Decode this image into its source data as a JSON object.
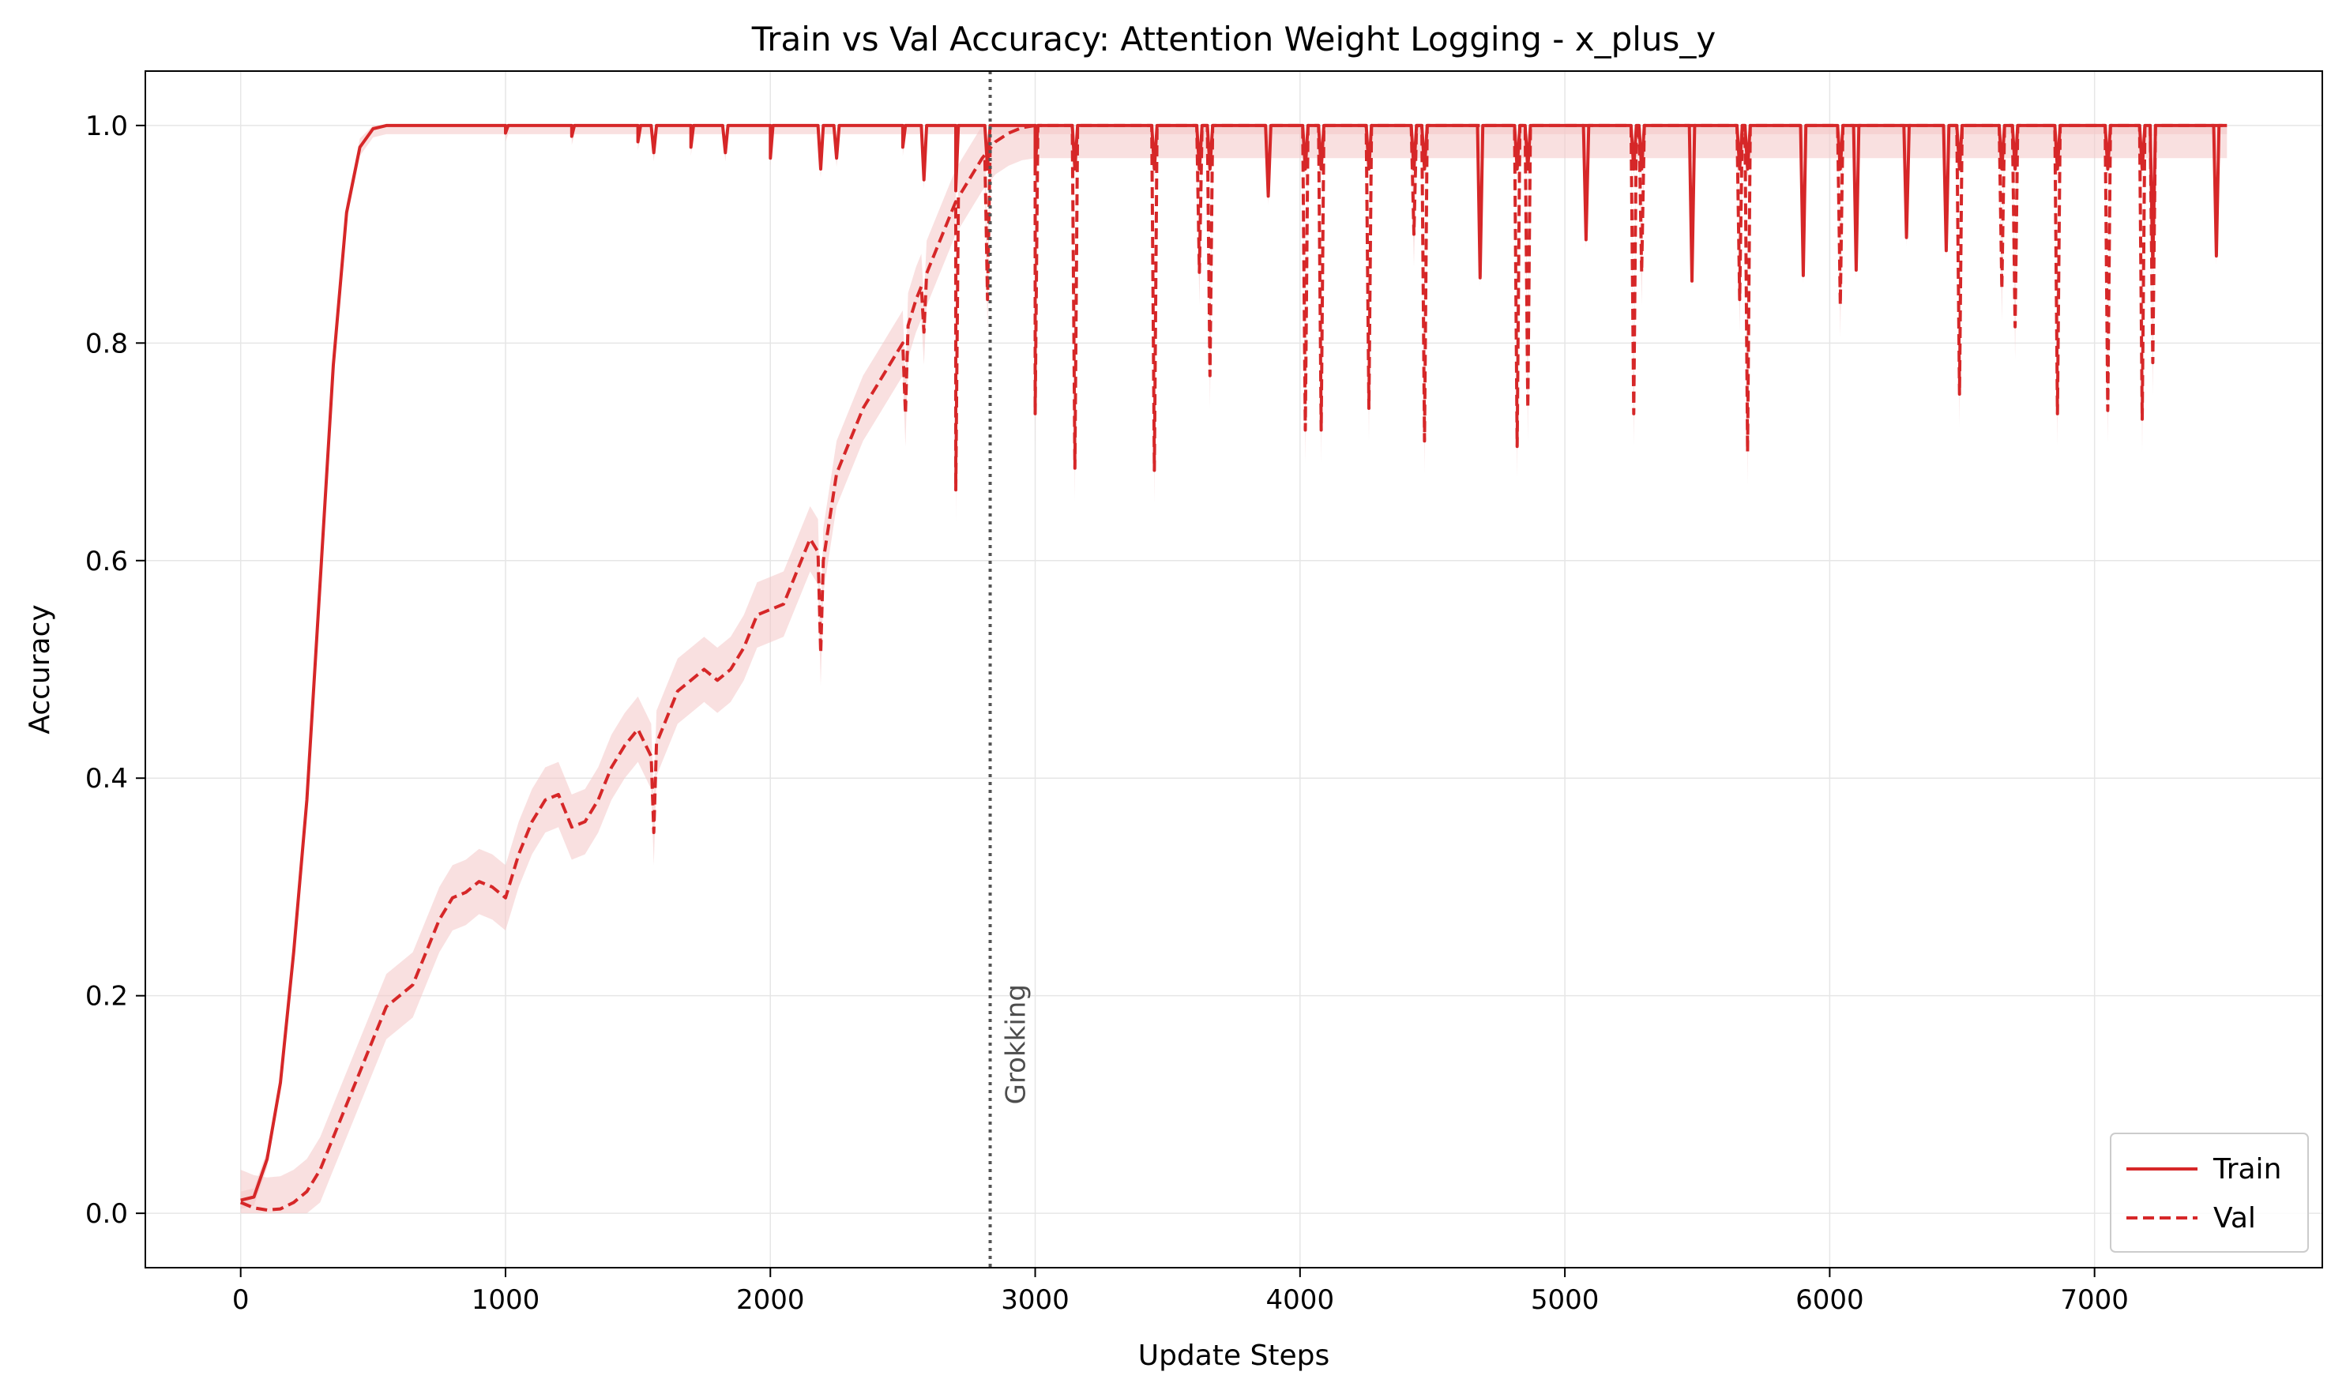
{
  "chart_data": {
    "type": "line",
    "title": "Train vs Val Accuracy: Attention Weight Logging - x_plus_y",
    "xlabel": "Update Steps",
    "ylabel": "Accuracy",
    "xlim": [
      -360,
      7860
    ],
    "ylim": [
      -0.05,
      1.05
    ],
    "xticks": [
      0,
      1000,
      2000,
      3000,
      4000,
      5000,
      6000,
      7000
    ],
    "yticks": [
      0.0,
      0.2,
      0.4,
      0.6,
      0.8,
      1.0
    ],
    "xtick_labels": [
      "0",
      "1000",
      "2000",
      "3000",
      "4000",
      "5000",
      "6000",
      "7000"
    ],
    "ytick_labels": [
      "0.0",
      "0.2",
      "0.4",
      "0.6",
      "0.8",
      "1.0"
    ],
    "grid": true,
    "legend_position": "lower-right",
    "colors": {
      "series": "#d62728",
      "band": "#f4c6c7",
      "grokking_line": "#555555"
    },
    "series": [
      {
        "name": "Train",
        "style": "solid",
        "x": [
          0,
          50,
          100,
          150,
          200,
          250,
          300,
          350,
          400,
          450,
          500,
          550,
          600,
          700,
          800,
          900,
          1000,
          1100,
          1150,
          1200,
          1250,
          1300,
          1400,
          1500,
          1600,
          1700,
          1800,
          1900,
          2000,
          2100,
          2200,
          2300,
          2400,
          2500,
          2600,
          2700,
          2800,
          3000,
          3500,
          4000,
          4500,
          5000,
          5500,
          6000,
          6500,
          7000,
          7500
        ],
        "y": [
          0.012,
          0.015,
          0.05,
          0.12,
          0.24,
          0.38,
          0.58,
          0.78,
          0.92,
          0.98,
          0.997,
          1.0,
          1.0,
          1.0,
          1.0,
          1.0,
          1.0,
          1.0,
          1.0,
          1.0,
          1.0,
          1.0,
          1.0,
          1.0,
          1.0,
          1.0,
          1.0,
          1.0,
          1.0,
          1.0,
          1.0,
          1.0,
          1.0,
          1.0,
          1.0,
          1.0,
          1.0,
          1.0,
          1.0,
          1.0,
          1.0,
          1.0,
          1.0,
          1.0,
          1.0,
          1.0,
          1.0
        ],
        "dips": [
          [
            1000,
            0.993
          ],
          [
            1250,
            0.99
          ],
          [
            1500,
            0.985
          ],
          [
            1560,
            0.975
          ],
          [
            1700,
            0.98
          ],
          [
            1830,
            0.975
          ],
          [
            2000,
            0.97
          ],
          [
            2190,
            0.96
          ],
          [
            2250,
            0.97
          ],
          [
            2500,
            0.98
          ],
          [
            2580,
            0.95
          ],
          [
            2700,
            0.94
          ],
          [
            2820,
            0.96
          ],
          [
            3000,
            0.96
          ],
          [
            3150,
            0.96
          ],
          [
            3450,
            0.96
          ],
          [
            3620,
            0.96
          ],
          [
            3660,
            0.96
          ],
          [
            3880,
            0.935
          ],
          [
            4020,
            0.96
          ],
          [
            4080,
            0.96
          ],
          [
            4260,
            0.96
          ],
          [
            4430,
            0.96
          ],
          [
            4470,
            0.96
          ],
          [
            4680,
            0.86
          ],
          [
            4820,
            0.96
          ],
          [
            4860,
            0.96
          ],
          [
            5080,
            0.895
          ],
          [
            5260,
            0.96
          ],
          [
            5290,
            0.96
          ],
          [
            5480,
            0.857
          ],
          [
            5660,
            0.96
          ],
          [
            5690,
            0.96
          ],
          [
            5900,
            0.862
          ],
          [
            6040,
            0.96
          ],
          [
            6100,
            0.867
          ],
          [
            6290,
            0.897
          ],
          [
            6440,
            0.885
          ],
          [
            6490,
            0.96
          ],
          [
            6650,
            0.96
          ],
          [
            6700,
            0.96
          ],
          [
            6860,
            0.96
          ],
          [
            7050,
            0.96
          ],
          [
            7180,
            0.96
          ],
          [
            7220,
            0.87
          ],
          [
            7460,
            0.88
          ]
        ]
      },
      {
        "name": "Val",
        "style": "dashed",
        "x": [
          0,
          50,
          100,
          150,
          200,
          250,
          300,
          350,
          400,
          450,
          500,
          550,
          600,
          650,
          700,
          750,
          800,
          850,
          900,
          950,
          1000,
          1050,
          1100,
          1150,
          1200,
          1250,
          1300,
          1350,
          1400,
          1450,
          1500,
          1550,
          1600,
          1650,
          1700,
          1750,
          1800,
          1850,
          1900,
          1950,
          2000,
          2050,
          2100,
          2150,
          2200,
          2250,
          2300,
          2350,
          2400,
          2450,
          2500,
          2550,
          2600,
          2650,
          2700,
          2750,
          2800,
          2850,
          2900,
          2950,
          3000,
          3500,
          4000,
          4500,
          5000,
          5500,
          6000,
          6500,
          7000,
          7500
        ],
        "y": [
          0.01,
          0.005,
          0.003,
          0.004,
          0.01,
          0.02,
          0.04,
          0.07,
          0.1,
          0.13,
          0.16,
          0.19,
          0.2,
          0.21,
          0.24,
          0.27,
          0.29,
          0.295,
          0.305,
          0.3,
          0.29,
          0.33,
          0.36,
          0.38,
          0.385,
          0.355,
          0.36,
          0.38,
          0.41,
          0.43,
          0.445,
          0.42,
          0.45,
          0.48,
          0.49,
          0.5,
          0.49,
          0.5,
          0.52,
          0.55,
          0.555,
          0.56,
          0.59,
          0.62,
          0.6,
          0.68,
          0.71,
          0.74,
          0.76,
          0.78,
          0.8,
          0.84,
          0.87,
          0.9,
          0.93,
          0.95,
          0.97,
          0.985,
          0.993,
          0.998,
          1.0,
          1.0,
          1.0,
          1.0,
          1.0,
          1.0,
          1.0,
          1.0,
          1.0,
          1.0
        ],
        "dips": [
          [
            1560,
            0.35
          ],
          [
            2190,
            0.515
          ],
          [
            2510,
            0.735
          ],
          [
            2580,
            0.81
          ],
          [
            2700,
            0.665
          ],
          [
            2820,
            0.84
          ],
          [
            3000,
            0.735
          ],
          [
            3150,
            0.685
          ],
          [
            3450,
            0.683
          ],
          [
            3620,
            0.865
          ],
          [
            3660,
            0.77
          ],
          [
            4020,
            0.72
          ],
          [
            4080,
            0.72
          ],
          [
            4260,
            0.74
          ],
          [
            4430,
            0.9
          ],
          [
            4470,
            0.71
          ],
          [
            4820,
            0.705
          ],
          [
            4860,
            0.74
          ],
          [
            5260,
            0.735
          ],
          [
            5290,
            0.865
          ],
          [
            5660,
            0.84
          ],
          [
            5690,
            0.7
          ],
          [
            6040,
            0.835
          ],
          [
            6490,
            0.753
          ],
          [
            6650,
            0.85
          ],
          [
            6700,
            0.815
          ],
          [
            6860,
            0.735
          ],
          [
            7050,
            0.738
          ],
          [
            7180,
            0.73
          ],
          [
            7220,
            0.782
          ]
        ]
      }
    ],
    "annotations": [
      {
        "type": "vline",
        "x": 2830,
        "label": "Grokking"
      }
    ]
  }
}
